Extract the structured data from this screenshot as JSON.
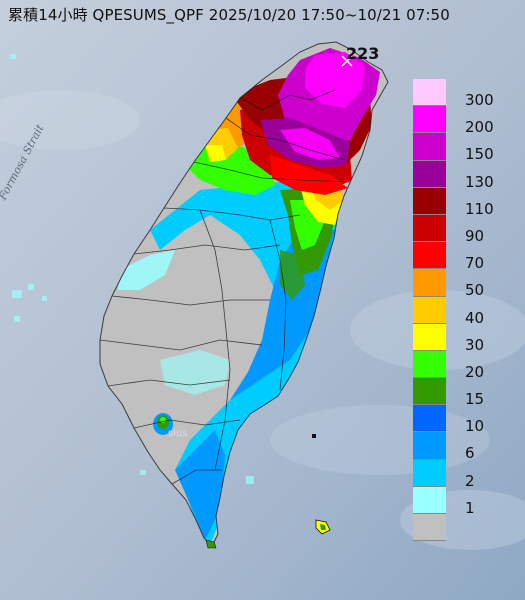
{
  "title": "累積14小時 QPESUMS_QPF 2025/10/20 17:50~10/21 07:50",
  "map_labels": {
    "strait": "Formosa Strait",
    "city_kaohsiung": "sius",
    "max_value": "223"
  },
  "legend": {
    "entries": [
      {
        "label": "300",
        "color": "#ffc8ff"
      },
      {
        "label": "200",
        "color": "#ff00ff"
      },
      {
        "label": "150",
        "color": "#cc00cc"
      },
      {
        "label": "130",
        "color": "#99009a"
      },
      {
        "label": "110",
        "color": "#990000"
      },
      {
        "label": "90",
        "color": "#cc0000"
      },
      {
        "label": "70",
        "color": "#ff0000"
      },
      {
        "label": "50",
        "color": "#ff9900"
      },
      {
        "label": "40",
        "color": "#ffcc00"
      },
      {
        "label": "30",
        "color": "#ffff00"
      },
      {
        "label": "20",
        "color": "#33ff00"
      },
      {
        "label": "15",
        "color": "#339900"
      },
      {
        "label": "10",
        "color": "#0066ff"
      },
      {
        "label": "6",
        "color": "#0099ff"
      },
      {
        "label": "2",
        "color": "#00ccff"
      },
      {
        "label": "1",
        "color": "#99ffff"
      },
      {
        "label": "",
        "color": "#c0c0c0"
      }
    ]
  }
}
